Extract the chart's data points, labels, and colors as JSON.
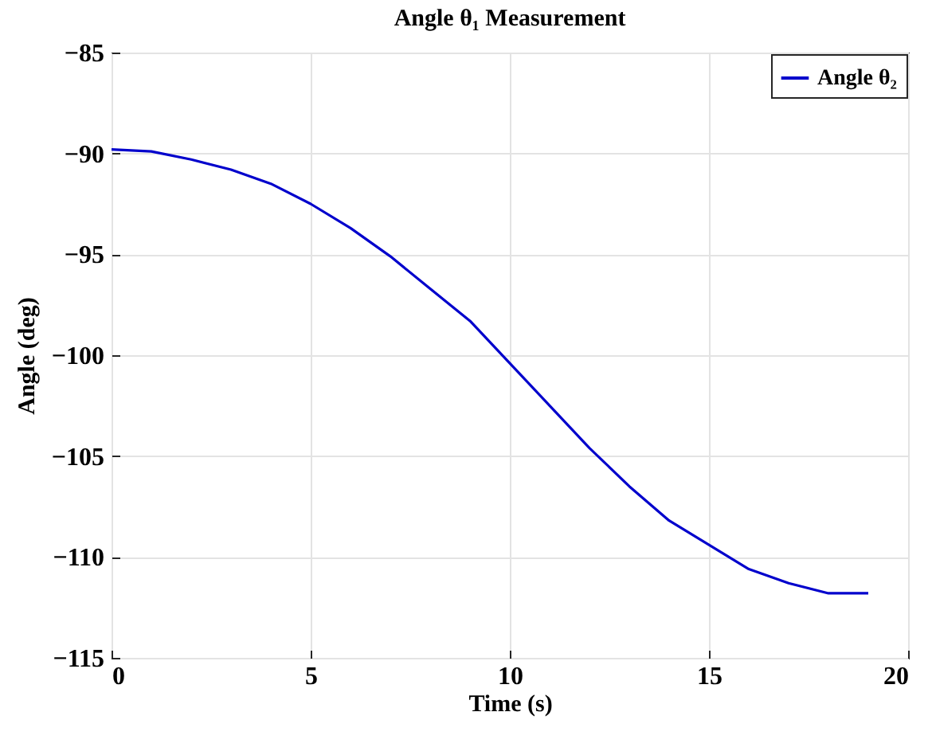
{
  "chart_data": {
    "type": "line",
    "title": "Angle θ₁ Measurement",
    "xlabel": "Time (s)",
    "ylabel": "Angle (deg)",
    "x": [
      0,
      1,
      2,
      3,
      4,
      5,
      6,
      7,
      8,
      9,
      10,
      11,
      12,
      13,
      14,
      15,
      16,
      17,
      18,
      19
    ],
    "series": [
      {
        "name": "Angle θ₂",
        "color": "#0000cc",
        "values": [
          -89.8,
          -89.9,
          -90.3,
          -90.8,
          -91.5,
          -92.5,
          -93.7,
          -95.1,
          -96.7,
          -98.3,
          -100.4,
          -102.5,
          -104.6,
          -106.5,
          -108.2,
          -109.4,
          -110.6,
          -111.3,
          -111.8,
          -111.8
        ]
      }
    ],
    "xlim": [
      0,
      20
    ],
    "xticks": [
      0,
      5,
      10,
      15,
      20
    ],
    "ylim": [
      -115,
      -85
    ],
    "yticks": [
      -115,
      -110,
      -105,
      -100,
      -95,
      -90,
      -85
    ],
    "grid": true,
    "legend": "top right",
    "line_style": "solid",
    "marker": "none"
  }
}
